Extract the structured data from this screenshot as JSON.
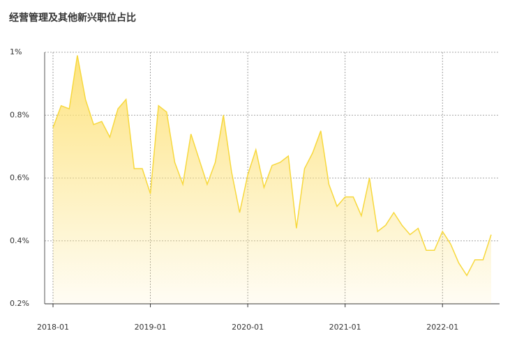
{
  "chart_data": {
    "type": "area",
    "title": "经营管理及其他新兴职位占比",
    "categories": [
      "2018-01",
      null,
      null,
      null,
      null,
      null,
      null,
      null,
      null,
      null,
      null,
      null,
      "2019-01",
      null,
      null,
      null,
      null,
      null,
      null,
      null,
      null,
      null,
      null,
      null,
      "2020-01",
      null,
      null,
      null,
      null,
      null,
      null,
      null,
      null,
      null,
      null,
      null,
      "2021-01",
      null,
      null,
      null,
      null,
      null,
      null,
      null,
      null,
      null,
      null,
      null,
      "2022-01",
      null,
      null,
      null,
      null,
      null,
      null
    ],
    "values": [
      0.76,
      0.83,
      0.82,
      0.99,
      0.85,
      0.77,
      0.78,
      0.73,
      0.82,
      0.85,
      0.63,
      0.63,
      0.55,
      0.83,
      0.81,
      0.65,
      0.58,
      0.74,
      0.66,
      0.58,
      0.65,
      0.8,
      0.62,
      0.49,
      0.61,
      0.69,
      0.57,
      0.64,
      0.65,
      0.67,
      0.44,
      0.63,
      0.68,
      0.75,
      0.58,
      0.51,
      0.54,
      0.54,
      0.48,
      0.6,
      0.43,
      0.45,
      0.49,
      0.45,
      0.42,
      0.44,
      0.37,
      0.37,
      0.43,
      0.39,
      0.33,
      0.29,
      0.34,
      0.34,
      0.42
    ],
    "color": "#f7d83c",
    "ylim": [
      0.2,
      1
    ],
    "yticks": [
      {
        "value": 0.2,
        "label": "0.2%"
      },
      {
        "value": 0.4,
        "label": "0.4%"
      },
      {
        "value": 0.6,
        "label": "0.6%"
      },
      {
        "value": 0.8,
        "label": "0.8%"
      },
      {
        "value": 1,
        "label": "1%"
      }
    ],
    "grid": true
  }
}
